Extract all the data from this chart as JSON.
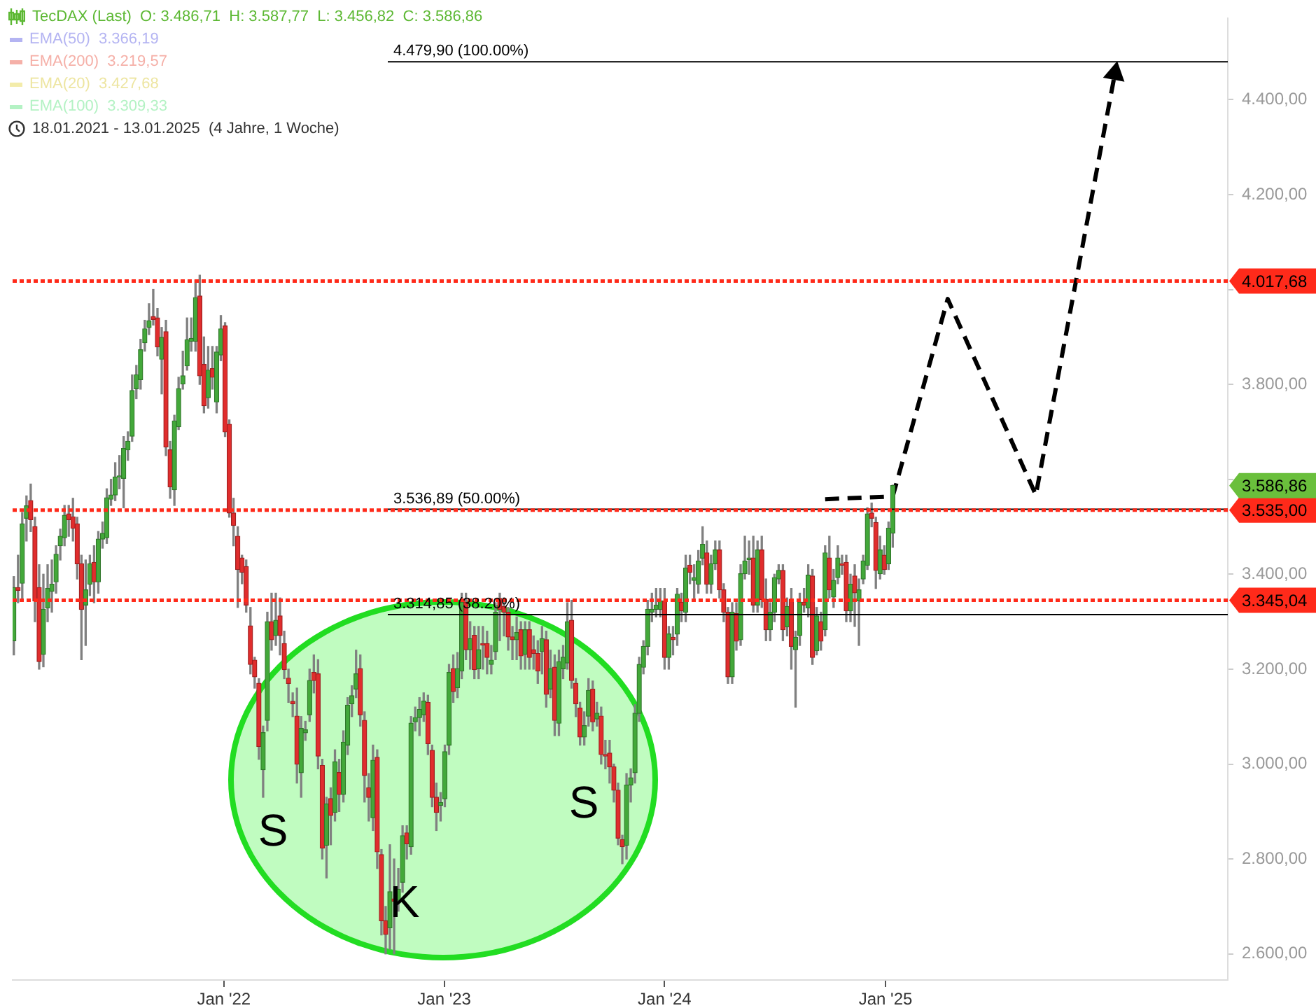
{
  "chart_data": {
    "type": "candlestick",
    "x": [
      "2021-01-18",
      "2021-01-25",
      "2021-02-01",
      "2021-02-08",
      "2021-02-15",
      "2021-02-22",
      "2021-03-01",
      "2021-03-08",
      "2021-03-15",
      "2021-03-22",
      "2021-03-29",
      "2021-04-05",
      "2021-04-12",
      "2021-04-19",
      "2021-04-26",
      "2021-05-03",
      "2021-05-10",
      "2021-05-17",
      "2021-05-24",
      "2021-05-31",
      "2021-06-07",
      "2021-06-14",
      "2021-06-21",
      "2021-06-28",
      "2021-07-05",
      "2021-07-12",
      "2021-07-19",
      "2021-07-26",
      "2021-08-02",
      "2021-08-09",
      "2021-08-16",
      "2021-08-23",
      "2021-08-30",
      "2021-09-06",
      "2021-09-13",
      "2021-09-20",
      "2021-09-27",
      "2021-10-04",
      "2021-10-11",
      "2021-10-18",
      "2021-10-25",
      "2021-11-01",
      "2021-11-08",
      "2021-11-15",
      "2021-11-22",
      "2021-11-29",
      "2021-12-06",
      "2021-12-13",
      "2021-12-20",
      "2021-12-27",
      "2022-01-03",
      "2022-01-10",
      "2022-01-17",
      "2022-01-24",
      "2022-01-31",
      "2022-02-07",
      "2022-02-14",
      "2022-02-21",
      "2022-02-28",
      "2022-03-07",
      "2022-03-14",
      "2022-03-21",
      "2022-03-28",
      "2022-04-04",
      "2022-04-11",
      "2022-04-18",
      "2022-04-25",
      "2022-05-02",
      "2022-05-09",
      "2022-05-16",
      "2022-05-23",
      "2022-05-30",
      "2022-06-06",
      "2022-06-13",
      "2022-06-20",
      "2022-06-27",
      "2022-07-04",
      "2022-07-11",
      "2022-07-18",
      "2022-07-25",
      "2022-08-01",
      "2022-08-08",
      "2022-08-15",
      "2022-08-22",
      "2022-08-29",
      "2022-09-05",
      "2022-09-12",
      "2022-09-19",
      "2022-09-26",
      "2022-10-03",
      "2022-10-10",
      "2022-10-17",
      "2022-10-24",
      "2022-10-31",
      "2022-11-07",
      "2022-11-14",
      "2022-11-21",
      "2022-11-28",
      "2022-12-05",
      "2022-12-12",
      "2022-12-19",
      "2022-12-26",
      "2023-01-02",
      "2023-01-09",
      "2023-01-16",
      "2023-01-23",
      "2023-01-30",
      "2023-02-06",
      "2023-02-13",
      "2023-02-20",
      "2023-02-27",
      "2023-03-06",
      "2023-03-13",
      "2023-03-20",
      "2023-03-27",
      "2023-04-03",
      "2023-04-10",
      "2023-04-17",
      "2023-04-24",
      "2023-05-01",
      "2023-05-08",
      "2023-05-15",
      "2023-05-22",
      "2023-05-29",
      "2023-06-05",
      "2023-06-12",
      "2023-06-19",
      "2023-06-26",
      "2023-07-03",
      "2023-07-10",
      "2023-07-17",
      "2023-07-24",
      "2023-07-31",
      "2023-08-07",
      "2023-08-14",
      "2023-08-21",
      "2023-08-28",
      "2023-09-04",
      "2023-09-11",
      "2023-09-18",
      "2023-09-25",
      "2023-10-02",
      "2023-10-09",
      "2023-10-16",
      "2023-10-23",
      "2023-10-30",
      "2023-11-06",
      "2023-11-13",
      "2023-11-20",
      "2023-11-27",
      "2023-12-04",
      "2023-12-11",
      "2023-12-18",
      "2023-12-25",
      "2024-01-01",
      "2024-01-08",
      "2024-01-15",
      "2024-01-22",
      "2024-01-29",
      "2024-02-05",
      "2024-02-12",
      "2024-02-19",
      "2024-02-26",
      "2024-03-04",
      "2024-03-11",
      "2024-03-18",
      "2024-03-25",
      "2024-04-01",
      "2024-04-08",
      "2024-04-15",
      "2024-04-22",
      "2024-04-29",
      "2024-05-06",
      "2024-05-13",
      "2024-05-20",
      "2024-05-27",
      "2024-06-03",
      "2024-06-10",
      "2024-06-17",
      "2024-06-24",
      "2024-07-01",
      "2024-07-08",
      "2024-07-15",
      "2024-07-22",
      "2024-07-29",
      "2024-08-05",
      "2024-08-12",
      "2024-08-19",
      "2024-08-26",
      "2024-09-02",
      "2024-09-09",
      "2024-09-16",
      "2024-09-23",
      "2024-09-30",
      "2024-10-07",
      "2024-10-14",
      "2024-10-21",
      "2024-10-28",
      "2024-11-04",
      "2024-11-11",
      "2024-11-18",
      "2024-11-25",
      "2024-12-02",
      "2024-12-09",
      "2024-12-16",
      "2024-12-23",
      "2024-12-30",
      "2025-01-06",
      "2025-01-13"
    ],
    "ohlc": [
      [
        3260,
        3395,
        3230,
        3372
      ],
      [
        3372,
        3440,
        3340,
        3366
      ],
      [
        3381,
        3530,
        3345,
        3506
      ],
      [
        3518,
        3565,
        3470,
        3544
      ],
      [
        3555,
        3590,
        3490,
        3515
      ],
      [
        3500,
        3520,
        3300,
        3344
      ],
      [
        3372,
        3420,
        3200,
        3216
      ],
      [
        3231,
        3400,
        3205,
        3326
      ],
      [
        3329,
        3420,
        3300,
        3370
      ],
      [
        3364,
        3430,
        3320,
        3379
      ],
      [
        3384,
        3460,
        3360,
        3442
      ],
      [
        3460,
        3495,
        3430,
        3480
      ],
      [
        3477,
        3545,
        3460,
        3524
      ],
      [
        3527,
        3545,
        3480,
        3515
      ],
      [
        3521,
        3560,
        3470,
        3497
      ],
      [
        3506,
        3520,
        3390,
        3422
      ],
      [
        3422,
        3440,
        3220,
        3326
      ],
      [
        3335,
        3430,
        3250,
        3367
      ],
      [
        3379,
        3440,
        3355,
        3422
      ],
      [
        3425,
        3460,
        3340,
        3384
      ],
      [
        3384,
        3490,
        3360,
        3474
      ],
      [
        3474,
        3510,
        3455,
        3486
      ],
      [
        3477,
        3580,
        3465,
        3561
      ],
      [
        3558,
        3600,
        3545,
        3567
      ],
      [
        3567,
        3635,
        3555,
        3605
      ],
      [
        3605,
        3650,
        3580,
        3607
      ],
      [
        3602,
        3690,
        3540,
        3665
      ],
      [
        3662,
        3700,
        3640,
        3680
      ],
      [
        3691,
        3820,
        3680,
        3787
      ],
      [
        3791,
        3840,
        3770,
        3820
      ],
      [
        3810,
        3895,
        3790,
        3873
      ],
      [
        3888,
        3935,
        3870,
        3917
      ],
      [
        3920,
        3970,
        3905,
        3934
      ],
      [
        3943,
        4000,
        3925,
        3937
      ],
      [
        3940,
        3960,
        3860,
        3879
      ],
      [
        3853,
        3920,
        3780,
        3899
      ],
      [
        3911,
        3935,
        3650,
        3668
      ],
      [
        3662,
        3680,
        3560,
        3584
      ],
      [
        3578,
        3735,
        3545,
        3723
      ],
      [
        3711,
        3815,
        3705,
        3791
      ],
      [
        3801,
        3870,
        3790,
        3818
      ],
      [
        3839,
        3940,
        3830,
        3894
      ],
      [
        3891,
        3940,
        3870,
        3897
      ],
      [
        3891,
        4020,
        3870,
        3983
      ],
      [
        3986,
        4030,
        3800,
        3818
      ],
      [
        3842,
        3900,
        3740,
        3755
      ],
      [
        3772,
        3880,
        3750,
        3830
      ],
      [
        3833,
        3880,
        3790,
        3815
      ],
      [
        3763,
        3880,
        3740,
        3868
      ],
      [
        3862,
        3945,
        3850,
        3917
      ],
      [
        3923,
        3930,
        3690,
        3700
      ],
      [
        3716,
        3725,
        3520,
        3529
      ],
      [
        3529,
        3560,
        3460,
        3503
      ],
      [
        3480,
        3500,
        3330,
        3410
      ],
      [
        3434,
        3440,
        3380,
        3404
      ],
      [
        3416,
        3430,
        3320,
        3335
      ],
      [
        3291,
        3330,
        3190,
        3210
      ],
      [
        3219,
        3225,
        3160,
        3184
      ],
      [
        3170,
        3180,
        3010,
        3037
      ],
      [
        2988,
        3080,
        2930,
        3066
      ],
      [
        3092,
        3320,
        3070,
        3300
      ],
      [
        3300,
        3360,
        3240,
        3262
      ],
      [
        3271,
        3360,
        3250,
        3303
      ],
      [
        3312,
        3350,
        3230,
        3271
      ],
      [
        3254,
        3280,
        3180,
        3199
      ],
      [
        3181,
        3200,
        3130,
        3170
      ],
      [
        3132,
        3150,
        3100,
        3127
      ],
      [
        3101,
        3160,
        2960,
        3000
      ],
      [
        2982,
        3100,
        2930,
        3075
      ],
      [
        3066,
        3090,
        3050,
        3072
      ],
      [
        3104,
        3200,
        3090,
        3176
      ],
      [
        3193,
        3230,
        3150,
        3176
      ],
      [
        3190,
        3220,
        2990,
        3017
      ],
      [
        2997,
        3010,
        2800,
        2823
      ],
      [
        2829,
        2930,
        2760,
        2916
      ],
      [
        2927,
        2950,
        2830,
        2892
      ],
      [
        2898,
        3030,
        2880,
        3005
      ],
      [
        2982,
        3010,
        2900,
        2936
      ],
      [
        2936,
        3070,
        2920,
        3046
      ],
      [
        3040,
        3140,
        3020,
        3124
      ],
      [
        3127,
        3165,
        3100,
        3144
      ],
      [
        3158,
        3240,
        3140,
        3190
      ],
      [
        3201,
        3230,
        3080,
        3104
      ],
      [
        3092,
        3110,
        2920,
        2976
      ],
      [
        2950,
        2980,
        2880,
        2930
      ],
      [
        2887,
        3040,
        2860,
        3008
      ],
      [
        3014,
        3030,
        2780,
        2815
      ],
      [
        2809,
        2820,
        2640,
        2670
      ],
      [
        2670,
        2700,
        2600,
        2641
      ],
      [
        2655,
        2830,
        2610,
        2731
      ],
      [
        2716,
        2800,
        2600,
        2711
      ],
      [
        2713,
        2780,
        2690,
        2736
      ],
      [
        2751,
        2870,
        2730,
        2849
      ],
      [
        2855,
        2870,
        2800,
        2832
      ],
      [
        2826,
        3100,
        2810,
        3086
      ],
      [
        3089,
        3120,
        3070,
        3098
      ],
      [
        3098,
        3140,
        3060,
        3115
      ],
      [
        3104,
        3150,
        3090,
        3133
      ],
      [
        3130,
        3145,
        3020,
        3043
      ],
      [
        3029,
        3040,
        2910,
        2930
      ],
      [
        2930,
        2960,
        2860,
        2898
      ],
      [
        2913,
        2940,
        2880,
        2919
      ],
      [
        2927,
        3040,
        2910,
        3026
      ],
      [
        3040,
        3210,
        3020,
        3193
      ],
      [
        3201,
        3230,
        3130,
        3153
      ],
      [
        3161,
        3235,
        3140,
        3201
      ],
      [
        3196,
        3360,
        3180,
        3341
      ],
      [
        3341,
        3360,
        3220,
        3241
      ],
      [
        3241,
        3300,
        3200,
        3264
      ],
      [
        3271,
        3290,
        3180,
        3199
      ],
      [
        3201,
        3290,
        3180,
        3241
      ],
      [
        3254,
        3290,
        3200,
        3251
      ],
      [
        3254,
        3280,
        3190,
        3225
      ],
      [
        3210,
        3250,
        3190,
        3219
      ],
      [
        3237,
        3340,
        3220,
        3320
      ],
      [
        3349,
        3360,
        3260,
        3326
      ],
      [
        3332,
        3350,
        3270,
        3320
      ],
      [
        3320,
        3330,
        3240,
        3268
      ],
      [
        3268,
        3290,
        3220,
        3262
      ],
      [
        3262,
        3310,
        3220,
        3277
      ],
      [
        3283,
        3300,
        3200,
        3228
      ],
      [
        3231,
        3300,
        3200,
        3283
      ],
      [
        3283,
        3300,
        3200,
        3225
      ],
      [
        3241,
        3270,
        3200,
        3233
      ],
      [
        3233,
        3260,
        3170,
        3196
      ],
      [
        3237,
        3290,
        3190,
        3264
      ],
      [
        3262,
        3280,
        3120,
        3147
      ],
      [
        3158,
        3240,
        3140,
        3201
      ],
      [
        3204,
        3230,
        3060,
        3092
      ],
      [
        3086,
        3240,
        3060,
        3216
      ],
      [
        3201,
        3250,
        3180,
        3225
      ],
      [
        3213,
        3340,
        3200,
        3300
      ],
      [
        3303,
        3345,
        3160,
        3176
      ],
      [
        3170,
        3180,
        3100,
        3127
      ],
      [
        3118,
        3130,
        3040,
        3057
      ],
      [
        3057,
        3110,
        3040,
        3081
      ],
      [
        3101,
        3180,
        3080,
        3155
      ],
      [
        3158,
        3175,
        3070,
        3089
      ],
      [
        3095,
        3130,
        3080,
        3107
      ],
      [
        3101,
        3120,
        3000,
        3020
      ],
      [
        3020,
        3050,
        2990,
        3017
      ],
      [
        3023,
        3050,
        2960,
        2994
      ],
      [
        2994,
        3000,
        2920,
        2945
      ],
      [
        2945,
        2960,
        2830,
        2844
      ],
      [
        2841,
        2850,
        2790,
        2826
      ],
      [
        2829,
        2980,
        2800,
        2956
      ],
      [
        2956,
        2990,
        2920,
        2971
      ],
      [
        2982,
        3125,
        2960,
        3107
      ],
      [
        3107,
        3225,
        3090,
        3210
      ],
      [
        3204,
        3260,
        3190,
        3248
      ],
      [
        3248,
        3345,
        3230,
        3326
      ],
      [
        3320,
        3360,
        3300,
        3326
      ],
      [
        3326,
        3370,
        3310,
        3335
      ],
      [
        3326,
        3370,
        3310,
        3344
      ],
      [
        3344,
        3370,
        3200,
        3225
      ],
      [
        3225,
        3290,
        3200,
        3274
      ],
      [
        3267,
        3290,
        3230,
        3262
      ],
      [
        3274,
        3370,
        3250,
        3358
      ],
      [
        3341,
        3360,
        3300,
        3323
      ],
      [
        3320,
        3440,
        3300,
        3413
      ],
      [
        3419,
        3440,
        3380,
        3404
      ],
      [
        3387,
        3420,
        3350,
        3393
      ],
      [
        3379,
        3450,
        3360,
        3428
      ],
      [
        3434,
        3500,
        3420,
        3463
      ],
      [
        3445,
        3470,
        3360,
        3379
      ],
      [
        3379,
        3440,
        3360,
        3422
      ],
      [
        3422,
        3470,
        3410,
        3451
      ],
      [
        3451,
        3470,
        3350,
        3367
      ],
      [
        3367,
        3380,
        3300,
        3320
      ],
      [
        3320,
        3330,
        3170,
        3184
      ],
      [
        3184,
        3340,
        3170,
        3320
      ],
      [
        3317,
        3340,
        3240,
        3259
      ],
      [
        3262,
        3420,
        3250,
        3401
      ],
      [
        3401,
        3480,
        3390,
        3428
      ],
      [
        3431,
        3470,
        3400,
        3434
      ],
      [
        3434,
        3480,
        3320,
        3335
      ],
      [
        3335,
        3470,
        3320,
        3451
      ],
      [
        3451,
        3480,
        3330,
        3347
      ],
      [
        3347,
        3390,
        3260,
        3283
      ],
      [
        3283,
        3340,
        3260,
        3320
      ],
      [
        3320,
        3400,
        3300,
        3393
      ],
      [
        3390,
        3420,
        3380,
        3408
      ],
      [
        3408,
        3420,
        3260,
        3283
      ],
      [
        3289,
        3350,
        3270,
        3332
      ],
      [
        3347,
        3370,
        3200,
        3248
      ],
      [
        3241,
        3280,
        3120,
        3267
      ],
      [
        3271,
        3360,
        3250,
        3341
      ],
      [
        3341,
        3370,
        3320,
        3335
      ],
      [
        3329,
        3420,
        3310,
        3398
      ],
      [
        3396,
        3410,
        3210,
        3225
      ],
      [
        3239,
        3330,
        3230,
        3312
      ],
      [
        3300,
        3320,
        3240,
        3259
      ],
      [
        3283,
        3460,
        3270,
        3445
      ],
      [
        3434,
        3480,
        3350,
        3367
      ],
      [
        3352,
        3410,
        3330,
        3387
      ],
      [
        3393,
        3460,
        3380,
        3434
      ],
      [
        3422,
        3440,
        3400,
        3419
      ],
      [
        3425,
        3440,
        3300,
        3323
      ],
      [
        3323,
        3400,
        3300,
        3379
      ],
      [
        3396,
        3420,
        3290,
        3361
      ],
      [
        3344,
        3390,
        3250,
        3367
      ],
      [
        3390,
        3440,
        3380,
        3428
      ],
      [
        3419,
        3540,
        3410,
        3527
      ],
      [
        3529,
        3550,
        3500,
        3518
      ],
      [
        3509,
        3520,
        3370,
        3408
      ],
      [
        3401,
        3480,
        3390,
        3451
      ],
      [
        3440,
        3460,
        3400,
        3410
      ],
      [
        3422,
        3510,
        3410,
        3497
      ],
      [
        3486.71,
        3587.77,
        3456.82,
        3586.86
      ]
    ],
    "series": [
      {
        "type": "line",
        "x": [
          "2024-09-23",
          "2025-01-13",
          "2025-04-14",
          "2025-09-07",
          "2026-01-16"
        ],
        "values": [
          3558,
          3564,
          3980,
          3567,
          4455
        ],
        "color": "#000000",
        "line_style": "dashed"
      }
    ],
    "xlim": [
      "2021-01-16",
      "2026-07-22"
    ],
    "xticks": [
      {
        "value": "2022-01-01",
        "label": "Jan '22"
      },
      {
        "value": "2023-01-01",
        "label": "Jan '23"
      },
      {
        "value": "2024-01-01",
        "label": "Jan '24"
      },
      {
        "value": "2025-01-01",
        "label": "Jan '25"
      }
    ],
    "ylim": [
      2545,
      4571
    ],
    "yticks": [
      {
        "value": 2600,
        "label": "2.600,00"
      },
      {
        "value": 2800,
        "label": "2.800,00"
      },
      {
        "value": 3000,
        "label": "3.000,00"
      },
      {
        "value": 3200,
        "label": "3.200,00"
      },
      {
        "value": 3400,
        "label": "3.400,00"
      },
      {
        "value": 3600,
        "label": null
      },
      {
        "value": 3800,
        "label": "3.800,00"
      },
      {
        "value": 4000,
        "label": null
      },
      {
        "value": 4200,
        "label": "4.200,00"
      },
      {
        "value": 4400,
        "label": "4.400,00"
      }
    ],
    "ref_lines": [
      {
        "axis": "y",
        "value": 4479.9,
        "label": "4.479,90 (100.00%)",
        "color": "#000000",
        "line_style": "solid"
      },
      {
        "axis": "y",
        "value": 3536.89,
        "label": "3.536,89 (50.00%)",
        "color": "#000000",
        "line_style": "solid"
      },
      {
        "axis": "y",
        "value": 3314.85,
        "label": "3.314,85 (38.20%)",
        "color": "#000000",
        "line_style": "solid"
      },
      {
        "axis": "y",
        "value": 4017.68,
        "label": "4.017,68",
        "color": "#ff2a1a",
        "line_style": "dotted"
      },
      {
        "axis": "y",
        "value": 3535,
        "label": "3.535,00",
        "color": "#ff2a1a",
        "line_style": "dotted"
      },
      {
        "axis": "y",
        "value": 3345.04,
        "label": "3.345,04",
        "color": "#ff2a1a",
        "line_style": "dotted"
      }
    ],
    "annotations": [
      "TecDAX (Last)  O: 3.486,71  H: 3.587,77  L: 3.456,82  C: 3.586,86",
      "EMA(50)  3.366,19",
      "EMA(200)  3.219,57",
      "EMA(20)  3.427,68",
      "EMA(100)  3.309,33",
      "18.01.2021 - 13.01.2025  (4 Jahre, 1 Woche)",
      "S",
      "K",
      "S",
      "3.586,86"
    ]
  }
}
